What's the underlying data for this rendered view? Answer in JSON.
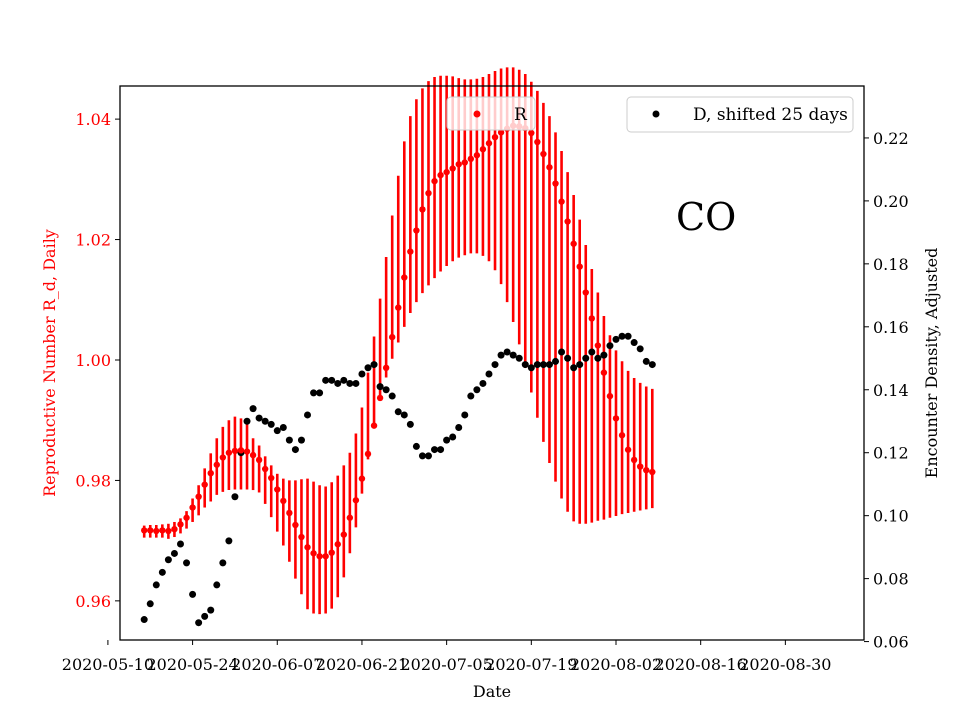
{
  "chart_data": {
    "type": "scatter",
    "xlabel": "Date",
    "ylabel_left": "Reproductive Number R_d, Daily",
    "ylabel_right": "Encounter Density, Adjusted",
    "xlim": [
      "2020-05-12",
      "2020-09-12"
    ],
    "ylim_left": [
      0.9535,
      1.0455
    ],
    "ylim_right": [
      0.0605,
      0.2365
    ],
    "x_ticks": [
      "2020-05-10",
      "2020-05-24",
      "2020-06-07",
      "2020-06-21",
      "2020-07-05",
      "2020-07-19",
      "2020-08-02",
      "2020-08-16",
      "2020-08-30"
    ],
    "y_ticks_left": [
      "0.96",
      "0.98",
      "1.00",
      "1.02",
      "1.04"
    ],
    "y_ticks_right": [
      "0.06",
      "0.08",
      "0.10",
      "0.12",
      "0.14",
      "0.16",
      "0.18",
      "0.20",
      "0.22"
    ],
    "grid": false,
    "annotation": "CO",
    "colors": {
      "r_series": "#ff0000",
      "d_series": "#000000",
      "left_axis_text": "#ff0000"
    },
    "series": [
      {
        "name": "R",
        "axis": "left",
        "start_date": "2020-05-16",
        "values": [
          0.9717,
          0.9717,
          0.9716,
          0.9717,
          0.9716,
          0.9719,
          0.9727,
          0.9738,
          0.9755,
          0.9773,
          0.9793,
          0.9812,
          0.9826,
          0.9838,
          0.9846,
          0.9849,
          0.985,
          0.9848,
          0.9842,
          0.9834,
          0.9819,
          0.9804,
          0.9785,
          0.9766,
          0.9746,
          0.9726,
          0.9706,
          0.9689,
          0.9679,
          0.9674,
          0.9674,
          0.968,
          0.9694,
          0.971,
          0.9738,
          0.9767,
          0.9803,
          0.9844,
          0.9891,
          0.9937,
          0.9987,
          1.0038,
          1.0087,
          1.0137,
          1.018,
          1.0215,
          1.025,
          1.0277,
          1.0297,
          1.0307,
          1.0312,
          1.0318,
          1.0325,
          1.0328,
          1.0334,
          1.034,
          1.035,
          1.036,
          1.037,
          1.0378,
          1.0384,
          1.0389,
          1.0388,
          1.0385,
          1.0377,
          1.0362,
          1.0342,
          1.032,
          1.0293,
          1.0263,
          1.023,
          1.0193,
          1.0155,
          1.0112,
          1.0069,
          1.0024,
          0.9979,
          0.994,
          0.9903,
          0.9875,
          0.9851,
          0.9834,
          0.9823,
          0.9817,
          0.9814
        ],
        "error_low": [
          0.9705,
          0.9705,
          0.9705,
          0.9705,
          0.9703,
          0.9706,
          0.9712,
          0.972,
          0.9731,
          0.9742,
          0.9755,
          0.9765,
          0.9776,
          0.9781,
          0.9784,
          0.9785,
          0.9785,
          0.9785,
          0.9784,
          0.978,
          0.9761,
          0.9739,
          0.9715,
          0.9692,
          0.9665,
          0.9637,
          0.9611,
          0.9586,
          0.9579,
          0.9578,
          0.9579,
          0.9587,
          0.9606,
          0.9639,
          0.9679,
          0.9722,
          0.9778,
          0.9835,
          0.9889,
          0.9936,
          0.9971,
          1.0002,
          1.0029,
          1.0055,
          1.0078,
          1.0096,
          1.0111,
          1.0124,
          1.0136,
          1.0147,
          1.0156,
          1.0164,
          1.017,
          1.0174,
          1.0177,
          1.0177,
          1.0173,
          1.0164,
          1.0149,
          1.0126,
          1.0096,
          1.0063,
          1.0026,
          0.9987,
          0.9946,
          0.9904,
          0.9864,
          0.9829,
          0.9798,
          0.977,
          0.9748,
          0.9732,
          0.9728,
          0.9728,
          0.973,
          0.9733,
          0.9735,
          0.9738,
          0.9741,
          0.9744,
          0.9746,
          0.9748,
          0.975,
          0.9752,
          0.9754
        ],
        "error_high": [
          0.9725,
          0.9726,
          0.9726,
          0.9727,
          0.9728,
          0.9731,
          0.9737,
          0.9749,
          0.977,
          0.9792,
          0.982,
          0.9845,
          0.987,
          0.9889,
          0.99,
          0.9906,
          0.9903,
          0.9893,
          0.987,
          0.9858,
          0.984,
          0.9825,
          0.9811,
          0.9803,
          0.98,
          0.98,
          0.9802,
          0.9803,
          0.9798,
          0.9792,
          0.979,
          0.9797,
          0.9808,
          0.9825,
          0.9846,
          0.9878,
          0.9921,
          0.9979,
          1.0039,
          1.0102,
          1.0171,
          1.024,
          1.0306,
          1.0363,
          1.0405,
          1.0433,
          1.0451,
          1.0463,
          1.047,
          1.0472,
          1.0472,
          1.0471,
          1.0468,
          1.0466,
          1.0466,
          1.0467,
          1.047,
          1.0475,
          1.048,
          1.0484,
          1.0486,
          1.0486,
          1.0482,
          1.0475,
          1.0462,
          1.0447,
          1.0427,
          1.0405,
          1.0378,
          1.0347,
          1.0312,
          1.0274,
          1.0233,
          1.0191,
          1.0151,
          1.0112,
          1.0073,
          1.0041,
          1.0016,
          0.9998,
          0.9982,
          0.997,
          0.9962,
          0.9956,
          0.9952
        ]
      },
      {
        "name": "D, shifted 25 days",
        "axis": "right",
        "start_date": "2020-05-16",
        "values": [
          0.067,
          0.072,
          0.078,
          0.082,
          0.086,
          0.088,
          0.091,
          0.085,
          0.075,
          0.066,
          0.068,
          0.07,
          0.078,
          0.085,
          0.092,
          0.106,
          0.12,
          0.13,
          0.134,
          0.131,
          0.13,
          0.129,
          0.127,
          0.128,
          0.124,
          0.121,
          0.124,
          0.132,
          0.139,
          0.139,
          0.143,
          0.143,
          0.142,
          0.143,
          0.142,
          0.142,
          0.145,
          0.147,
          0.148,
          0.141,
          0.14,
          0.138,
          0.133,
          0.132,
          0.129,
          0.122,
          0.119,
          0.119,
          0.121,
          0.121,
          0.124,
          0.125,
          0.128,
          0.132,
          0.138,
          0.14,
          0.142,
          0.145,
          0.148,
          0.151,
          0.152,
          0.151,
          0.15,
          0.148,
          0.147,
          0.148,
          0.148,
          0.148,
          0.149,
          0.152,
          0.15,
          0.147,
          0.148,
          0.15,
          0.152,
          0.15,
          0.151,
          0.154,
          0.156,
          0.157,
          0.157,
          0.155,
          0.153,
          0.149,
          0.148
        ]
      }
    ],
    "legend": [
      {
        "label": "R",
        "color": "#ff0000",
        "position": "upper-center"
      },
      {
        "label": "D, shifted 25 days",
        "color": "#000000",
        "position": "upper-right"
      }
    ]
  }
}
